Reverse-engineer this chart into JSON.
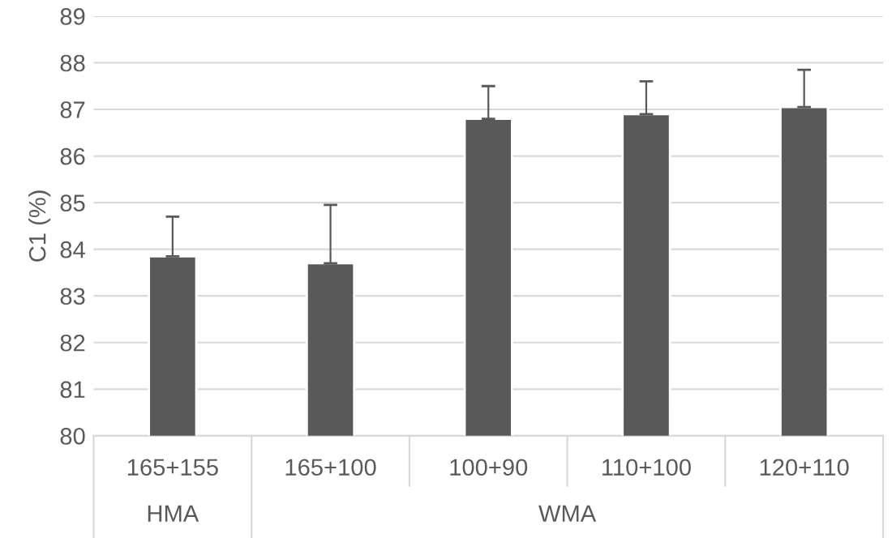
{
  "chart_data": {
    "type": "bar",
    "ylabel": "C1 (%)",
    "categories": [
      "165+155",
      "165+100",
      "100+90",
      "110+100",
      "120+110"
    ],
    "values": [
      83.85,
      83.7,
      86.8,
      86.9,
      87.05
    ],
    "errors": [
      [
        83.85,
        84.7
      ],
      [
        83.7,
        84.95
      ],
      [
        86.8,
        87.5
      ],
      [
        86.9,
        87.6
      ],
      [
        87.05,
        87.85
      ]
    ],
    "color": "#595959",
    "ylim": [
      80,
      89
    ],
    "yticks": [
      80,
      81,
      82,
      83,
      84,
      85,
      86,
      87,
      88,
      89
    ],
    "grid": "y",
    "annotations": [
      "HMA",
      "WMA"
    ]
  }
}
